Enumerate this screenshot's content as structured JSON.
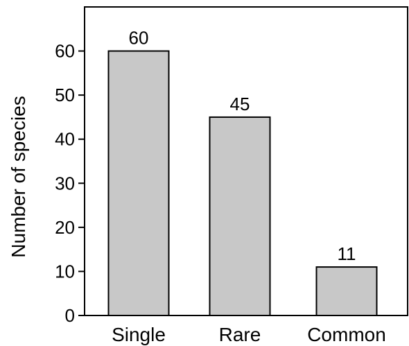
{
  "chart_data": {
    "type": "bar",
    "categories": [
      "Single",
      "Rare",
      "Common"
    ],
    "values": [
      60,
      45,
      11
    ],
    "data_labels": [
      "60",
      "45",
      "11"
    ],
    "ylabel": "Number of species",
    "xlabel": "",
    "title": "",
    "ylim": [
      0,
      70
    ],
    "yticks": [
      0,
      10,
      20,
      30,
      40,
      50,
      60
    ],
    "grid": false,
    "legend": "none",
    "bar_color": "#c8c8c8",
    "bar_edge_color": "#000000",
    "axis_color": "#000000"
  }
}
